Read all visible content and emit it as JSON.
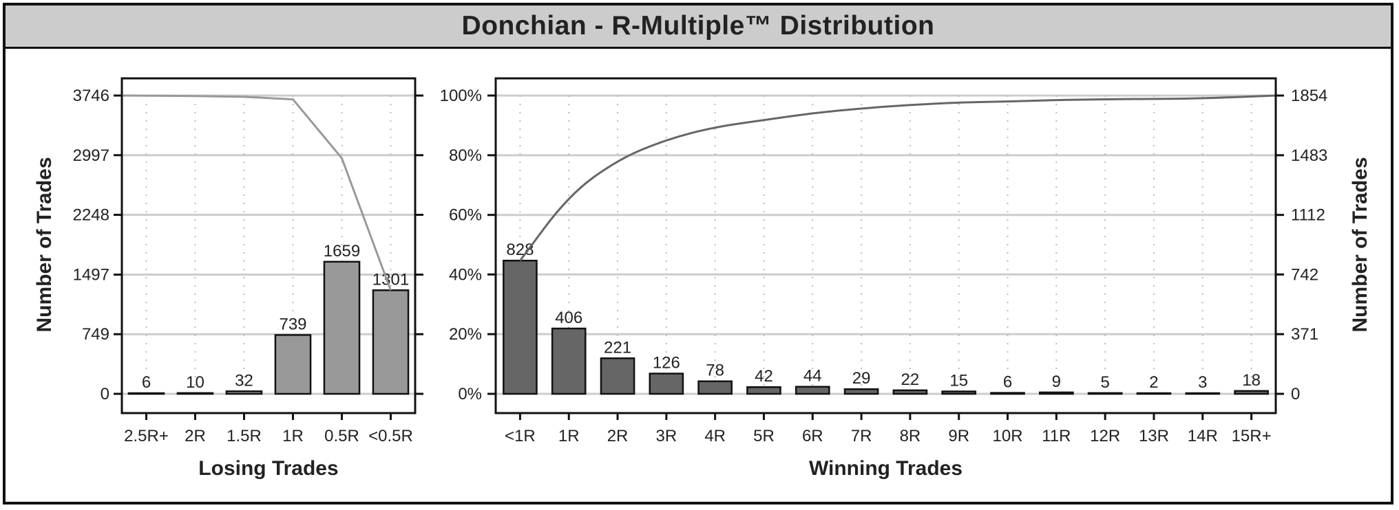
{
  "title": "Donchian - R-Multiple™ Distribution",
  "colors": {
    "losing_bar": "#999999",
    "winning_bar": "#666666",
    "losing_line": "#999999",
    "winning_line": "#666666",
    "grid": "#cccccc",
    "title_bg": "#cccccc"
  },
  "chart_data": [
    {
      "type": "bar",
      "name": "losing",
      "xlabel": "Losing Trades",
      "ylabel": "Number of Trades",
      "categories": [
        "2.5R+",
        "2R",
        "1.5R",
        "1R",
        "0.5R",
        "<0.5R"
      ],
      "values": [
        6,
        10,
        32,
        739,
        1659,
        1301
      ],
      "yticks": [
        0,
        749,
        1497,
        2248,
        2997,
        3746
      ],
      "ylim": [
        0,
        3746
      ],
      "cumulative_line": [
        3746,
        3740,
        3730,
        3698,
        2959,
        1301
      ],
      "grid": true
    },
    {
      "type": "bar",
      "name": "winning",
      "xlabel": "Winning Trades",
      "ylabel": "Number of Trades",
      "categories": [
        "<1R",
        "1R",
        "2R",
        "3R",
        "4R",
        "5R",
        "6R",
        "7R",
        "8R",
        "9R",
        "10R",
        "11R",
        "12R",
        "13R",
        "14R",
        "15R+"
      ],
      "values": [
        828,
        406,
        221,
        126,
        78,
        42,
        44,
        29,
        22,
        15,
        6,
        9,
        5,
        2,
        3,
        18
      ],
      "yticks_right": [
        0,
        371,
        742,
        1112,
        1483,
        1854
      ],
      "ylim": [
        0,
        1854
      ],
      "cumulative_percent_ticks": [
        "0%",
        "20%",
        "40%",
        "60%",
        "80%",
        "100%"
      ],
      "cumulative_line": [
        828,
        1234,
        1455,
        1581,
        1659,
        1701,
        1745,
        1774,
        1796,
        1811,
        1817,
        1826,
        1831,
        1833,
        1836,
        1854
      ],
      "grid": true
    }
  ]
}
